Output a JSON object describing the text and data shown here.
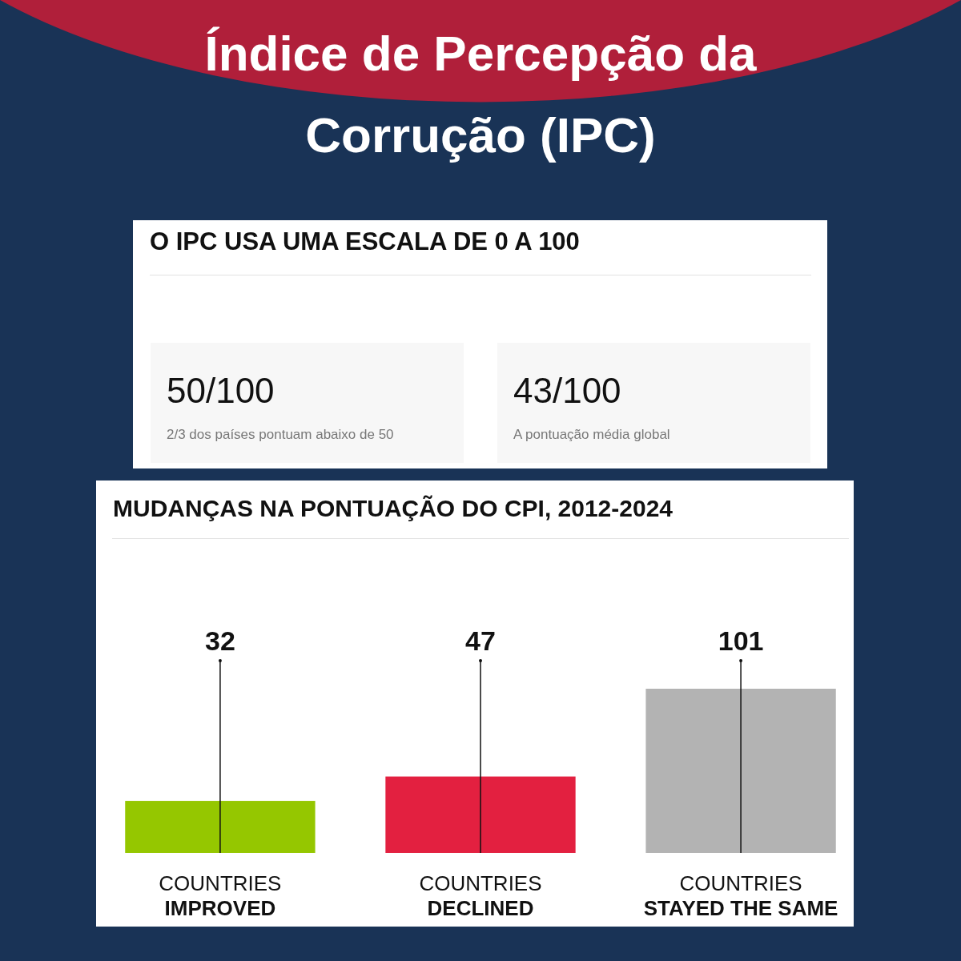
{
  "chart_data": [
    {
      "type": "other",
      "title": "Índice de Percepção da Corrução (IPC)",
      "subtitle": "O IPC USA UMA ESCALA DE 0 A 100",
      "annotations": [
        "50/100",
        "2/3 dos países pontuam abaixo de 50",
        "43/100",
        "A pontuação média global"
      ]
    },
    {
      "type": "bar",
      "title": "MUDANÇAS NA PONTUAÇÃO DO CPI, 2012-2024",
      "categories": [
        "COUNTRIES\nIMPROVED",
        "COUNTRIES\nDECLINED",
        "COUNTRIES\nSTAYED THE SAME"
      ],
      "values": [
        32,
        47,
        101
      ],
      "colors": [
        "#95c700",
        "#e32040",
        "#b3b3b3"
      ],
      "data_labels": true
    }
  ]
}
